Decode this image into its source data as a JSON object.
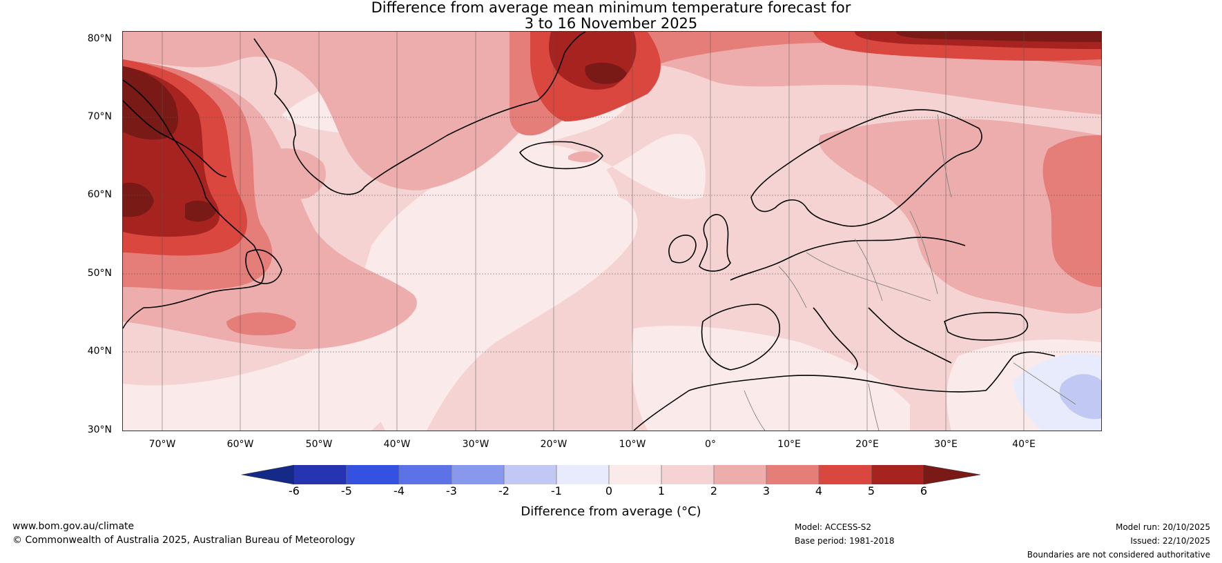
{
  "title": {
    "line1": "Difference from average mean minimum temperature forecast for",
    "line2": "3 to 16 November 2025"
  },
  "axes": {
    "lat_labels": [
      "80°N",
      "70°N",
      "60°N",
      "50°N",
      "40°N",
      "30°N"
    ],
    "lon_labels": [
      "70°W",
      "60°W",
      "50°W",
      "40°W",
      "30°W",
      "20°W",
      "10°W",
      "0°",
      "10°E",
      "20°E",
      "30°E",
      "40°E"
    ]
  },
  "colorbar": {
    "ticks": [
      "-6",
      "-5",
      "-4",
      "-3",
      "-2",
      "-1",
      "0",
      "1",
      "2",
      "3",
      "4",
      "5",
      "6"
    ],
    "label": "Difference from average (°C)",
    "colors": [
      "#142a86",
      "#2634b2",
      "#3451e0",
      "#5b73e6",
      "#8898ec",
      "#c0c8f3",
      "#e8ebfb",
      "#fbeaea",
      "#f5d3d3",
      "#eeadad",
      "#e57d79",
      "#d9473f",
      "#a6231f",
      "#7a1a16"
    ]
  },
  "map_colors": {
    "ocean_light": "#fbeaea",
    "ocean": "#f5d3d3",
    "moderate": "#eeadad",
    "warm": "#e57d79",
    "hot": "#d9473f",
    "very_hot": "#a6231f",
    "extreme": "#7a1a16",
    "cool": "#e8ebfb",
    "cooler": "#c0c8f3",
    "coast": "#000000",
    "border": "#808080"
  },
  "footer": {
    "website": "www.bom.gov.au/climate",
    "copyright": "© Commonwealth of Australia 2025, Australian Bureau of Meteorology",
    "model": "Model: ACCESS-S2",
    "base_period": "Base period: 1981-2018",
    "model_run": "Model run: 20/10/2025",
    "issued": "Issued: 22/10/2025",
    "disclaimer": "Boundaries are not considered authoritative"
  }
}
